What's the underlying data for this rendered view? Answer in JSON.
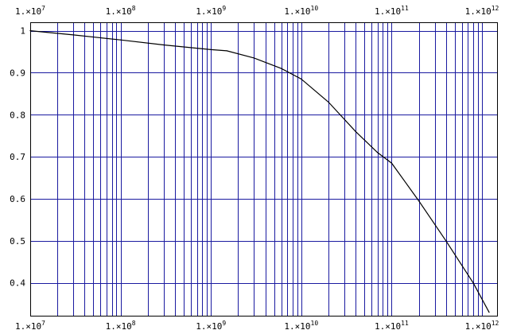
{
  "chart_data": {
    "type": "line",
    "title": "",
    "xlabel": "",
    "ylabel": "",
    "x_scale": "log",
    "xlim": [
      10000000,
      1500000000000
    ],
    "ylim": [
      0.32,
      1.02
    ],
    "grid": true,
    "grid_color": "#1a1aa0",
    "line_color": "#000000",
    "x_ticks": [
      {
        "value": 10000000,
        "mant": "1.×10",
        "exp": "7"
      },
      {
        "value": 100000000,
        "mant": "1.×10",
        "exp": "8"
      },
      {
        "value": 1000000000,
        "mant": "1.×10",
        "exp": "9"
      },
      {
        "value": 10000000000,
        "mant": "1.×10",
        "exp": "10"
      },
      {
        "value": 100000000000,
        "mant": "1.×10",
        "exp": "11"
      },
      {
        "value": 1000000000000,
        "mant": "1.×10",
        "exp": "12"
      }
    ],
    "y_ticks": [
      {
        "value": 1,
        "label": "1"
      },
      {
        "value": 0.9,
        "label": "0.9"
      },
      {
        "value": 0.8,
        "label": "0.8"
      },
      {
        "value": 0.7,
        "label": "0.7"
      },
      {
        "value": 0.6,
        "label": "0.6"
      },
      {
        "value": 0.5,
        "label": "0.5"
      },
      {
        "value": 0.4,
        "label": "0.4"
      }
    ],
    "series": [
      {
        "x": [
          10000000,
          30000000,
          100000000,
          300000000,
          1000000000,
          1500000000,
          3000000000,
          6000000000,
          10000000000,
          20000000000,
          40000000000,
          70000000000,
          100000000000,
          200000000000,
          400000000000,
          800000000000,
          1200000000000
        ],
        "y": [
          1.0,
          0.99,
          0.978,
          0.966,
          0.955,
          0.952,
          0.935,
          0.91,
          0.885,
          0.83,
          0.76,
          0.71,
          0.685,
          0.595,
          0.5,
          0.4,
          0.33
        ]
      }
    ]
  }
}
